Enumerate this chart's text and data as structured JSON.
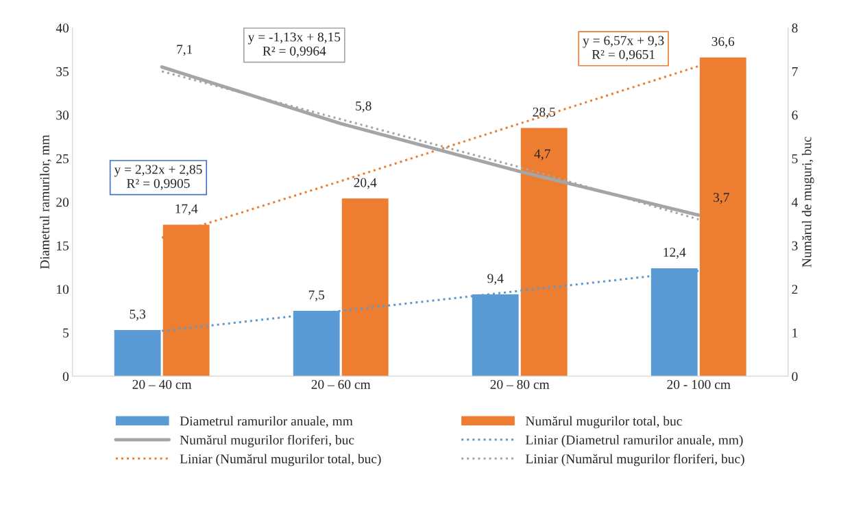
{
  "chart_data": {
    "type": "bar",
    "categories": [
      "20 – 40 cm",
      "20 – 60 cm",
      "20 – 80 cm",
      "20 - 100 cm"
    ],
    "ylabel": "Diametrul ramurilor, mm",
    "y2label": "Numărul de muguri, buc",
    "ylim": [
      0,
      40
    ],
    "yticks": [
      0,
      5,
      10,
      15,
      20,
      25,
      30,
      35,
      40
    ],
    "y2lim": [
      0,
      8
    ],
    "y2ticks": [
      0,
      1,
      2,
      3,
      4,
      5,
      6,
      7,
      8
    ],
    "legend": "bottom",
    "series": [
      {
        "name": "Diametrul ramurilor anuale, mm",
        "color": "#5b9bd5",
        "values": [
          5.3,
          7.5,
          9.4,
          12.4
        ],
        "value_labels": [
          "5,3",
          "7,5",
          "9,4",
          "12,4"
        ]
      },
      {
        "name": "Numărul mugurilor total, buc",
        "color": "#ed7d31",
        "values": [
          17.4,
          20.4,
          28.5,
          36.6
        ],
        "value_labels": [
          "17,4",
          "20,4",
          "28,5",
          "36,6"
        ]
      },
      {
        "name": "Numărul mugurilor floriferi, buc",
        "type": "line",
        "axis": "y2",
        "color": "#a5a5a5",
        "line_style": "solid",
        "values": [
          7.1,
          5.8,
          4.7,
          3.7
        ],
        "value_labels": [
          "7,1",
          "5,8",
          "4,7",
          "3,7"
        ]
      },
      {
        "name": "Liniar (Diametrul ramurilor anuale, mm)",
        "type": "line",
        "color": "#5b9bd5",
        "line_style": "dotted",
        "values": [
          5.2,
          7.5,
          9.8,
          12.1
        ]
      },
      {
        "name": "Liniar (Numărul mugurilor total, buc)",
        "type": "line",
        "color": "#ed7d31",
        "line_style": "dotted",
        "values": [
          15.9,
          22.4,
          29.0,
          35.6
        ]
      },
      {
        "name": "Liniar (Numărul mugurilor floriferi, buc)",
        "type": "line",
        "axis": "y2",
        "color": "#a5a5a5",
        "line_style": "dotted",
        "values": [
          7.0,
          5.9,
          4.8,
          3.6
        ]
      }
    ],
    "annotations": [
      "y = 2,32x + 2,85\nR² = 0,9905",
      "y = 6,57x + 9,3\nR² = 0,9651",
      "y = -1,13x + 8,15\nR² = 0,9964"
    ]
  }
}
